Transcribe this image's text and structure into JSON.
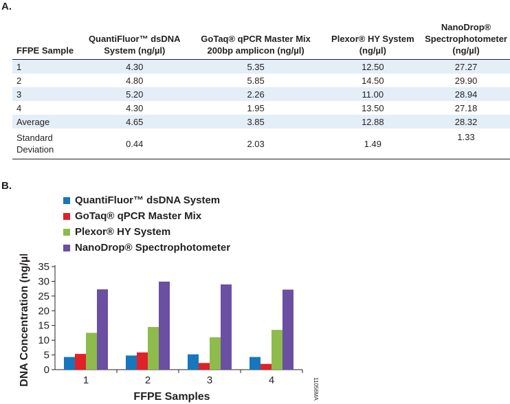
{
  "section_a_label": "A.",
  "section_b_label": "B.",
  "table": {
    "headers": [
      {
        "line1": "",
        "line2": "",
        "line3": "FFPE Sample"
      },
      {
        "line1": "",
        "line2": "QuantiFluor™ dsDNA",
        "line3": "System (ng/µl)"
      },
      {
        "line1": "",
        "line2": "GoTaq® qPCR Master Mix",
        "line3": "200bp amplicon (ng/µl)"
      },
      {
        "line1": "",
        "line2": "Plexor® HY System",
        "line3": "(ng/µl)"
      },
      {
        "line1": "NanoDrop®",
        "line2": "Spectrophotometer",
        "line3": "(ng/µl)"
      }
    ],
    "rows": [
      {
        "sample": "1",
        "quantifluor": "4.30",
        "gotaq": "5.35",
        "plexor": "12.50",
        "nanodrop": "27.27"
      },
      {
        "sample": "2",
        "quantifluor": "4.80",
        "gotaq": "5.85",
        "plexor": "14.50",
        "nanodrop": "29.90"
      },
      {
        "sample": "3",
        "quantifluor": "5.20",
        "gotaq": "2.26",
        "plexor": "11.00",
        "nanodrop": "28.94"
      },
      {
        "sample": "4",
        "quantifluor": "4.30",
        "gotaq": "1.95",
        "plexor": "13.50",
        "nanodrop": "27.18"
      },
      {
        "sample": "Average",
        "quantifluor": "4.65",
        "gotaq": "3.85",
        "plexor": "12.88",
        "nanodrop": "28.32"
      }
    ],
    "stdev_row": {
      "sample_line1": "Standard",
      "sample_line2": "Deviation",
      "quantifluor": "0.44",
      "gotaq": "2.03",
      "plexor": "1.49",
      "nanodrop": "1.33"
    }
  },
  "colors": {
    "quantifluor": "#1777bc",
    "gotaq": "#e02128",
    "plexor": "#8dbb4c",
    "nanodrop": "#6a4fa3",
    "row_shade": "#e4eef7"
  },
  "figure_id": "11056MA",
  "chart_data": {
    "type": "bar",
    "categories": [
      "1",
      "2",
      "3",
      "4"
    ],
    "series": [
      {
        "name": "QuantiFluor™ dsDNA System",
        "values": [
          4.3,
          4.8,
          5.2,
          4.3
        ]
      },
      {
        "name": "GoTaq® qPCR Master Mix",
        "values": [
          5.35,
          5.85,
          2.26,
          1.95
        ]
      },
      {
        "name": "Plexor® HY System",
        "values": [
          12.5,
          14.5,
          11.0,
          13.5
        ]
      },
      {
        "name": "NanoDrop® Spectrophotometer",
        "values": [
          27.27,
          29.9,
          28.94,
          27.18
        ]
      }
    ],
    "xlabel": "FFPE Samples",
    "ylabel": "DNA Concentration (ng/µl)",
    "ylim": [
      0,
      35
    ],
    "yticks": [
      0,
      5,
      10,
      15,
      20,
      25,
      30,
      35
    ],
    "grid": false,
    "legend_position": "top-left"
  }
}
